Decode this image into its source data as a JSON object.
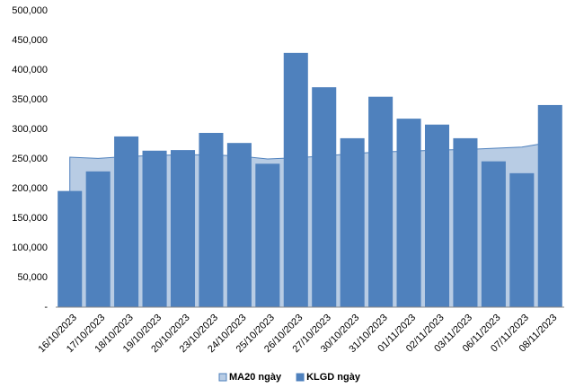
{
  "chart_data": {
    "type": "bar",
    "categories": [
      "16/10/2023",
      "17/10/2023",
      "18/10/2023",
      "19/10/2023",
      "20/10/2023",
      "23/10/2023",
      "24/10/2023",
      "25/10/2023",
      "26/10/2023",
      "27/10/2023",
      "30/10/2023",
      "31/10/2023",
      "01/11/2023",
      "02/11/2023",
      "03/11/2023",
      "06/11/2023",
      "07/11/2023",
      "08/11/2023"
    ],
    "series": [
      {
        "name": "MA20 ngày",
        "type": "area",
        "color": "#b8cce4",
        "line_color": "#4f81bd",
        "values": [
          253000,
          251000,
          254000,
          256000,
          257000,
          257000,
          255000,
          250000,
          252000,
          255000,
          259000,
          262000,
          263000,
          265000,
          266000,
          268000,
          270000,
          278000
        ]
      },
      {
        "name": "KLGD ngày",
        "type": "bar",
        "color": "#4f81bd",
        "values": [
          196000,
          229000,
          288000,
          264000,
          265000,
          294000,
          277000,
          242000,
          429000,
          371000,
          285000,
          355000,
          318000,
          308000,
          285000,
          246000,
          226000,
          341000
        ]
      }
    ],
    "ylim": [
      0,
      500000
    ],
    "yticks": [
      {
        "value": 0,
        "label": "-"
      },
      {
        "value": 50000,
        "label": "50,000"
      },
      {
        "value": 100000,
        "label": "100,000"
      },
      {
        "value": 150000,
        "label": "150,000"
      },
      {
        "value": 200000,
        "label": "200,000"
      },
      {
        "value": 250000,
        "label": "250,000"
      },
      {
        "value": 300000,
        "label": "300,000"
      },
      {
        "value": 350000,
        "label": "350,000"
      },
      {
        "value": 400000,
        "label": "400,000"
      },
      {
        "value": 450000,
        "label": "450,000"
      },
      {
        "value": 500000,
        "label": "500,000"
      }
    ],
    "grid": false,
    "legend": "bottom"
  }
}
